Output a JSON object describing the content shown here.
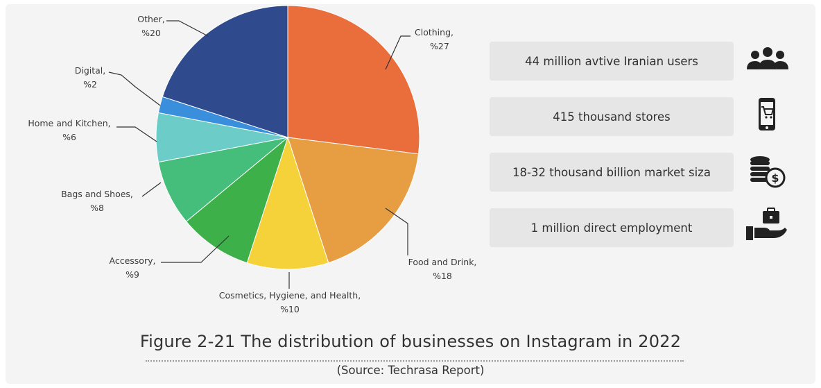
{
  "chart_data": {
    "type": "pie",
    "title": "Figure 2-21 The distribution of businesses on Instagram in 2022",
    "source": "(Source: Techrasa Report)",
    "slices": [
      {
        "label": "Clothing,",
        "pct_label": "%27",
        "value": 27,
        "color": "#ea6d3c"
      },
      {
        "label": "Food and  Drink,",
        "pct_label": "%18",
        "value": 18,
        "color": "#e79d42"
      },
      {
        "label": "Cosmetics, Hygiene, and Health,",
        "pct_label": "%10",
        "value": 10,
        "color": "#f6d23a"
      },
      {
        "label": "Accessory,",
        "pct_label": "%9",
        "value": 9,
        "color": "#3db04a"
      },
      {
        "label": "Bags and Shoes,",
        "pct_label": "%8",
        "value": 8,
        "color": "#44be7a"
      },
      {
        "label": "Home and Kitchen,",
        "pct_label": "%6",
        "value": 6,
        "color": "#6ccdc8"
      },
      {
        "label": "Digital,",
        "pct_label": "%2",
        "value": 2,
        "color": "#3a8fdc"
      },
      {
        "label": "Other,",
        "pct_label": "%20",
        "value": 20,
        "color": "#2f4a8d"
      }
    ]
  },
  "stats": [
    {
      "text": "44 million avtive Iranian users",
      "icon": "users-group-icon"
    },
    {
      "text": "415 thousand stores",
      "icon": "mobile-shopping-cart-icon"
    },
    {
      "text": "18-32 thousand billion market siza",
      "icon": "coins-dollar-icon"
    },
    {
      "text": "1 million direct employment",
      "icon": "hand-briefcase-icon"
    }
  ],
  "colors": {
    "card_bg": "#f4f4f4",
    "box_bg": "#e6e6e6",
    "icon": "#222222",
    "text": "#333333"
  }
}
